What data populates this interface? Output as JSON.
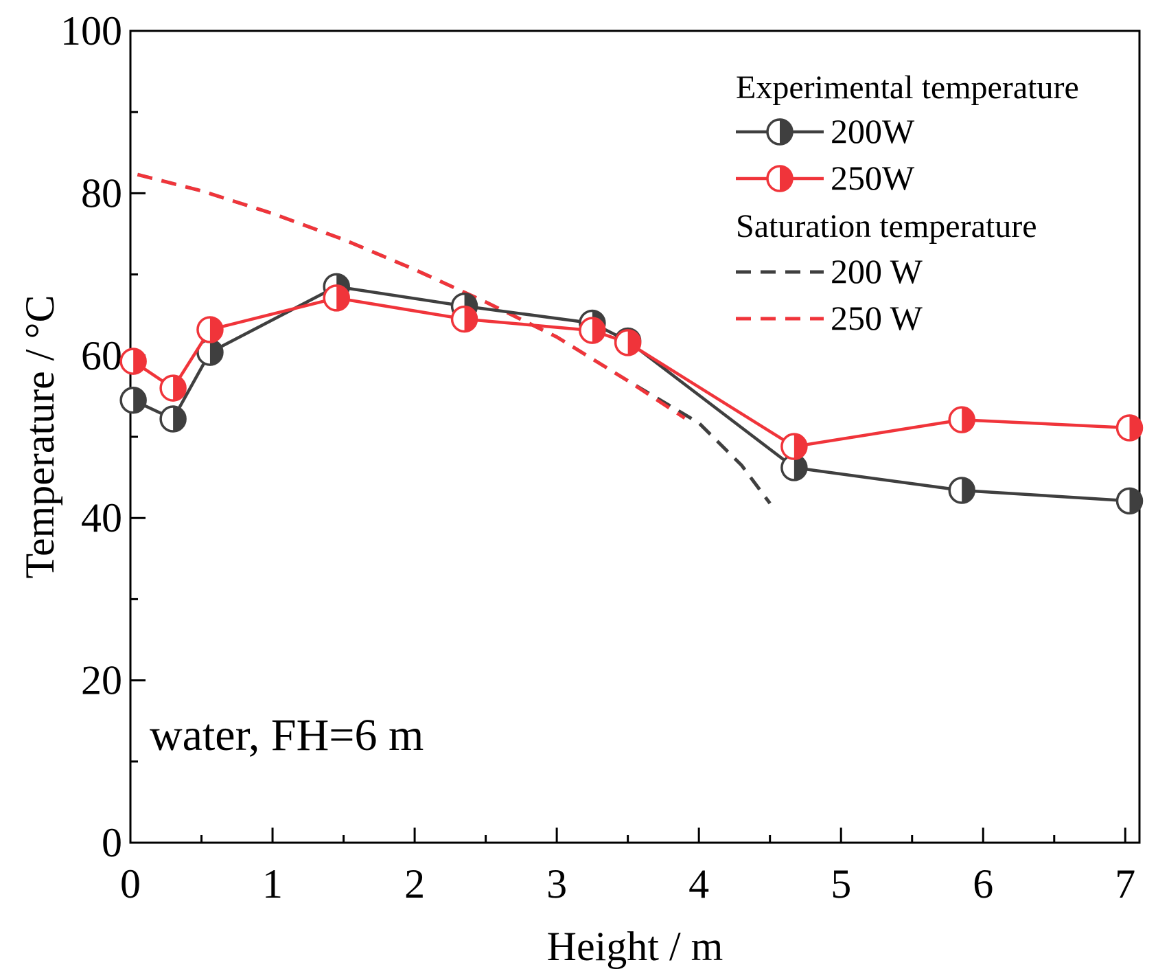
{
  "chart_data": {
    "type": "line",
    "xlabel": "Height / m",
    "ylabel": "Temperature / °C",
    "xlim": [
      0,
      7.1
    ],
    "ylim": [
      0,
      100
    ],
    "xticks": [
      "0",
      "1",
      "2",
      "3",
      "4",
      "5",
      "6",
      "7"
    ],
    "yticks": [
      "0",
      "20",
      "40",
      "60",
      "80",
      "100"
    ],
    "annotation": "water, FH=6 m",
    "legend": {
      "position": "top-right",
      "group1_title": "Experimental temperature",
      "group2_title": "Saturation temperature"
    },
    "series": [
      {
        "name": "200W",
        "kind": "experimental",
        "color": "#3f3f3f",
        "x": [
          0.02,
          0.3,
          0.56,
          1.45,
          2.35,
          3.25,
          3.5,
          4.67,
          5.85,
          7.03
        ],
        "y": [
          54.5,
          52.2,
          60.4,
          68.5,
          66.1,
          64.0,
          61.8,
          46.2,
          43.4,
          42.1
        ]
      },
      {
        "name": "250W",
        "kind": "experimental",
        "color": "#f0343a",
        "x": [
          0.02,
          0.3,
          0.56,
          1.45,
          2.35,
          3.25,
          3.5,
          4.67,
          5.85,
          7.03
        ],
        "y": [
          59.3,
          56.0,
          63.2,
          67.1,
          64.5,
          63.1,
          61.6,
          48.8,
          52.1,
          51.1
        ]
      },
      {
        "name": "200 W",
        "kind": "saturation",
        "color": "#3f3f3f",
        "x": [
          0.05,
          0.5,
          1.0,
          1.5,
          2.0,
          2.5,
          3.0,
          3.5,
          4.0,
          4.3,
          4.5
        ],
        "y": [
          82.3,
          80.3,
          77.5,
          74.3,
          70.6,
          66.6,
          62.3,
          56.9,
          51.7,
          46.5,
          41.8
        ]
      },
      {
        "name": "250 W",
        "kind": "saturation",
        "color": "#f0343a",
        "x": [
          0.05,
          0.5,
          1.0,
          1.5,
          2.0,
          2.5,
          3.0,
          3.5,
          3.9
        ],
        "y": [
          82.3,
          80.3,
          77.5,
          74.3,
          70.6,
          66.6,
          62.3,
          56.9,
          52.3
        ]
      }
    ]
  }
}
